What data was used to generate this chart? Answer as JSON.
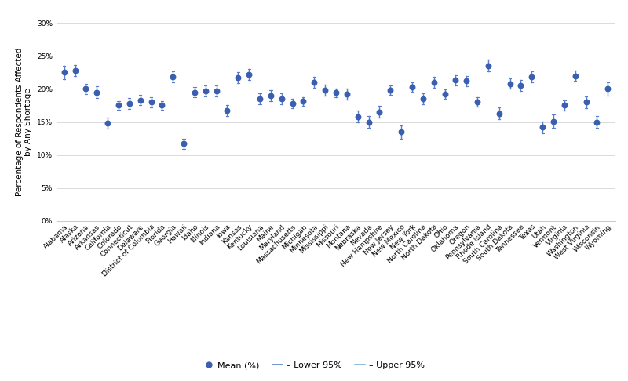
{
  "states": [
    "Alabama",
    "Alaska",
    "Arizona",
    "Arkansas",
    "California",
    "Colorado",
    "Connecticut",
    "Delaware",
    "District of Columbia",
    "Florida",
    "Georgia",
    "Hawaii",
    "Idaho",
    "Illinois",
    "Indiana",
    "Iowa",
    "Kansas",
    "Kentucky",
    "Louisiana",
    "Maine",
    "Maryland",
    "Massachusetts",
    "Michigan",
    "Minnesota",
    "Mississippi",
    "Missouri",
    "Montana",
    "Nebraska",
    "Nevada",
    "New Hampshire",
    "New Jersey",
    "New Mexico",
    "New York",
    "North Carolina",
    "North Dakota",
    "Ohio",
    "Oklahoma",
    "Oregon",
    "Pennsylvania",
    "Rhode Island",
    "South Carolina",
    "South Dakota",
    "Tennessee",
    "Texas",
    "Utah",
    "Vermont",
    "Virginia",
    "Washington",
    "West Virginia",
    "Wisconsin",
    "Wyoming"
  ],
  "means": [
    22.5,
    22.8,
    20.0,
    19.5,
    14.8,
    17.5,
    17.8,
    18.3,
    18.0,
    17.5,
    21.8,
    11.7,
    19.5,
    19.7,
    19.7,
    16.7,
    21.7,
    22.2,
    18.5,
    19.0,
    18.5,
    17.8,
    18.1,
    21.0,
    19.8,
    19.4,
    19.2,
    15.8,
    15.0,
    16.5,
    19.8,
    13.5,
    20.3,
    18.5,
    21.0,
    19.2,
    21.3,
    21.2,
    18.0,
    23.5,
    16.3,
    20.8,
    20.5,
    21.8,
    14.2,
    15.1,
    17.5,
    22.0,
    18.0,
    15.0,
    20.0
  ],
  "lower_err": [
    1.0,
    0.8,
    0.8,
    0.9,
    0.8,
    0.7,
    0.8,
    0.8,
    0.8,
    0.7,
    0.8,
    0.8,
    0.8,
    0.8,
    0.8,
    0.8,
    0.8,
    0.8,
    0.8,
    0.8,
    0.8,
    0.7,
    0.7,
    0.8,
    0.8,
    0.7,
    0.8,
    0.9,
    0.9,
    0.9,
    0.7,
    1.0,
    0.7,
    0.8,
    0.8,
    0.7,
    0.8,
    0.8,
    0.7,
    0.9,
    0.9,
    0.8,
    0.8,
    0.8,
    0.9,
    1.0,
    0.8,
    0.8,
    0.9,
    0.9,
    1.0
  ],
  "upper_err": [
    1.0,
    0.8,
    0.8,
    0.9,
    0.8,
    0.7,
    0.8,
    0.8,
    0.8,
    0.7,
    0.8,
    0.8,
    0.8,
    0.8,
    0.8,
    0.8,
    0.8,
    0.8,
    0.8,
    0.8,
    0.8,
    0.7,
    0.7,
    0.8,
    0.8,
    0.7,
    0.8,
    0.9,
    0.9,
    0.9,
    0.7,
    1.0,
    0.7,
    0.8,
    0.8,
    0.7,
    0.8,
    0.8,
    0.7,
    0.9,
    0.9,
    0.8,
    0.8,
    0.8,
    0.9,
    1.0,
    0.8,
    0.8,
    0.9,
    0.9,
    1.0
  ],
  "dot_color": "#3a5faf",
  "line_color": "#5b7fcc",
  "ylabel": "Percentage of Respondents Affected\nby Any Shortage",
  "yticks": [
    0,
    5,
    10,
    15,
    20,
    25,
    30
  ],
  "ytick_labels": [
    "0%",
    "5%",
    "10%",
    "15%",
    "20%",
    "25%",
    "30%"
  ],
  "legend_mean_label": "Mean (%)",
  "legend_lower_label": "– Lower 95%",
  "legend_upper_label": "– Upper 95%",
  "background_color": "#ffffff",
  "grid_color": "#d5d5d5",
  "axis_fontsize": 7.5,
  "tick_fontsize": 6.5
}
